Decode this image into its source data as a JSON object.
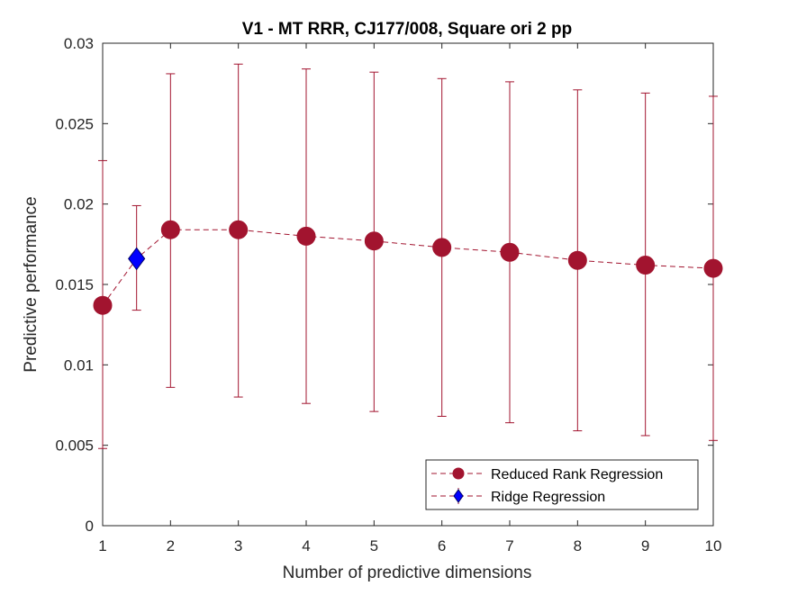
{
  "chart_data": {
    "type": "line",
    "title": "V1 - MT RRR, CJ177/008, Square ori 2 pp",
    "xlabel": "Number of predictive dimensions",
    "ylabel": "Predictive performance",
    "xlim": [
      1,
      10
    ],
    "ylim": [
      0,
      0.03
    ],
    "xticks": [
      1,
      2,
      3,
      4,
      5,
      6,
      7,
      8,
      9,
      10
    ],
    "xtick_labels": [
      "1",
      "2",
      "3",
      "4",
      "5",
      "6",
      "7",
      "8",
      "9",
      "10"
    ],
    "yticks": [
      0,
      0.005,
      0.01,
      0.015,
      0.02,
      0.025,
      0.03
    ],
    "ytick_labels": [
      "0",
      "0.005",
      "0.01",
      "0.015",
      "0.02",
      "0.025",
      "0.03"
    ],
    "grid": false,
    "legend_position": "bottom-right",
    "series": [
      {
        "name": "Reduced Rank Regression",
        "marker": "circle",
        "line_style": "dashed",
        "color": "#A2142F",
        "x": [
          1,
          2,
          3,
          4,
          5,
          6,
          7,
          8,
          9,
          10
        ],
        "y": [
          0.0137,
          0.0184,
          0.0184,
          0.018,
          0.0177,
          0.0173,
          0.017,
          0.0165,
          0.0162,
          0.016
        ],
        "err_low": [
          0.0048,
          0.0086,
          0.008,
          0.0076,
          0.0071,
          0.0068,
          0.0064,
          0.0059,
          0.0056,
          0.0053
        ],
        "err_high": [
          0.0227,
          0.0281,
          0.0287,
          0.0284,
          0.0282,
          0.0278,
          0.0276,
          0.0271,
          0.0269,
          0.0267
        ]
      },
      {
        "name": "Ridge Regression",
        "marker": "diamond",
        "line_style": "dashed",
        "color": "#0000FF",
        "err_color": "#A2142F",
        "x": [
          1.5
        ],
        "y": [
          0.0166
        ],
        "err_low": [
          0.0134
        ],
        "err_high": [
          0.0199
        ]
      }
    ]
  }
}
